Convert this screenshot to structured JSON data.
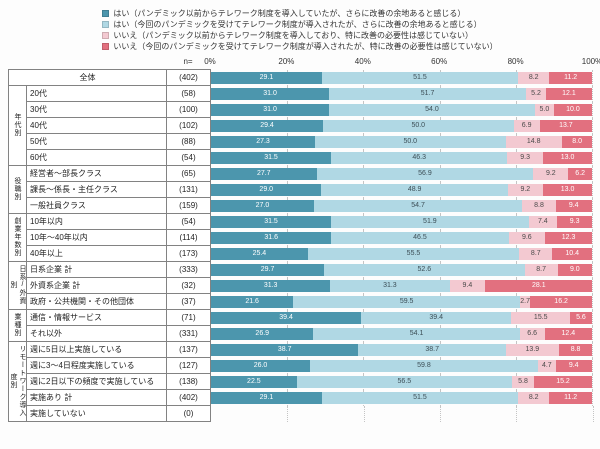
{
  "axis": {
    "n_label": "n=",
    "ticks": [
      "0%",
      "20%",
      "40%",
      "60%",
      "80%",
      "100%"
    ]
  },
  "chart_data": {
    "type": "bar",
    "stacked": true,
    "orientation": "horizontal",
    "unit": "%",
    "xlim": [
      0,
      100
    ],
    "grid": "dotted-vertical-every-20%",
    "legend_position": "top",
    "series": [
      {
        "name": "はい（パンデミック以前からテレワーク制度を導入していたが、さらに改善の余地あると感じる）",
        "color": "#4c96ad",
        "label_color": "#ffffff"
      },
      {
        "name": "はい（今回のパンデミックを受けてテレワーク制度が導入されたが、さらに改善の余地あると感じる）",
        "color": "#b0d8e4",
        "label_color": "#3c4e56"
      },
      {
        "name": "いいえ（パンデミック以前からテレワーク制度を導入しており、特に改善の必要性は感じていない）",
        "color": "#f3c9d1",
        "label_color": "#4a4a4a"
      },
      {
        "name": "いいえ（今回のパンデミックを受けてテレワーク制度が導入されたが、特に改善の必要性は感じていない）",
        "color": "#e2707f",
        "label_color": "#ffffff"
      }
    ],
    "rows": [
      {
        "group": "",
        "label": "全体",
        "n": 402,
        "values": [
          29.1,
          51.5,
          8.2,
          11.2
        ]
      },
      {
        "group": "年代別",
        "label": "20代",
        "n": 58,
        "values": [
          31.0,
          51.7,
          5.2,
          12.1
        ]
      },
      {
        "group": "年代別",
        "label": "30代",
        "n": 100,
        "values": [
          31.0,
          54.0,
          5.0,
          10.0
        ]
      },
      {
        "group": "年代別",
        "label": "40代",
        "n": 102,
        "values": [
          29.4,
          50.0,
          6.9,
          13.7
        ]
      },
      {
        "group": "年代別",
        "label": "50代",
        "n": 88,
        "values": [
          27.3,
          50.0,
          14.8,
          8.0
        ]
      },
      {
        "group": "年代別",
        "label": "60代",
        "n": 54,
        "values": [
          31.5,
          46.3,
          9.3,
          13.0
        ]
      },
      {
        "group": "役職別",
        "label": "経営者～部長クラス",
        "n": 65,
        "values": [
          27.7,
          56.9,
          9.2,
          6.2
        ]
      },
      {
        "group": "役職別",
        "label": "課長～係長・主任クラス",
        "n": 131,
        "values": [
          29.0,
          48.9,
          9.2,
          13.0
        ]
      },
      {
        "group": "役職別",
        "label": "一般社員クラス",
        "n": 159,
        "values": [
          27.0,
          54.7,
          8.8,
          9.4
        ]
      },
      {
        "group": "創業年数別",
        "label": "10年以内",
        "n": 54,
        "values": [
          31.5,
          51.9,
          7.4,
          9.3
        ]
      },
      {
        "group": "創業年数別",
        "label": "10年～40年以内",
        "n": 114,
        "values": [
          31.6,
          46.5,
          9.6,
          12.3
        ]
      },
      {
        "group": "創業年数別",
        "label": "40年以上",
        "n": 173,
        "values": [
          25.4,
          55.5,
          8.7,
          10.4
        ]
      },
      {
        "group": "日系/外資別",
        "label": "日系企業 計",
        "n": 333,
        "values": [
          29.7,
          52.6,
          8.7,
          9.0
        ]
      },
      {
        "group": "日系/外資別",
        "label": "外資系企業 計",
        "n": 32,
        "values": [
          31.3,
          31.3,
          9.4,
          28.1
        ]
      },
      {
        "group": "日系/外資別",
        "label": "政府・公共機関・その他団体",
        "n": 37,
        "values": [
          21.6,
          59.5,
          2.7,
          16.2
        ]
      },
      {
        "group": "業種別",
        "label": "通信・情報サービス",
        "n": 71,
        "values": [
          39.4,
          39.4,
          15.5,
          5.6
        ]
      },
      {
        "group": "業種別",
        "label": "それ以外",
        "n": 331,
        "values": [
          26.9,
          54.1,
          6.6,
          12.4
        ]
      },
      {
        "group": "リモートワーク導入度別",
        "label": "週に5日以上実施している",
        "n": 137,
        "values": [
          38.7,
          38.7,
          13.9,
          8.8
        ]
      },
      {
        "group": "リモートワーク導入度別",
        "label": "週に3～4日程度実施している",
        "n": 127,
        "values": [
          26.0,
          59.8,
          4.7,
          9.4
        ]
      },
      {
        "group": "リモートワーク導入度別",
        "label": "週に2日以下の頻度で実施している",
        "n": 138,
        "values": [
          22.5,
          56.5,
          5.8,
          15.2
        ]
      },
      {
        "group": "リモートワーク導入度別",
        "label": "実施あり 計",
        "n": 402,
        "values": [
          29.1,
          51.5,
          8.2,
          11.2
        ]
      },
      {
        "group": "リモートワーク導入度別",
        "label": "実施していない",
        "n": 0,
        "values": []
      }
    ]
  }
}
